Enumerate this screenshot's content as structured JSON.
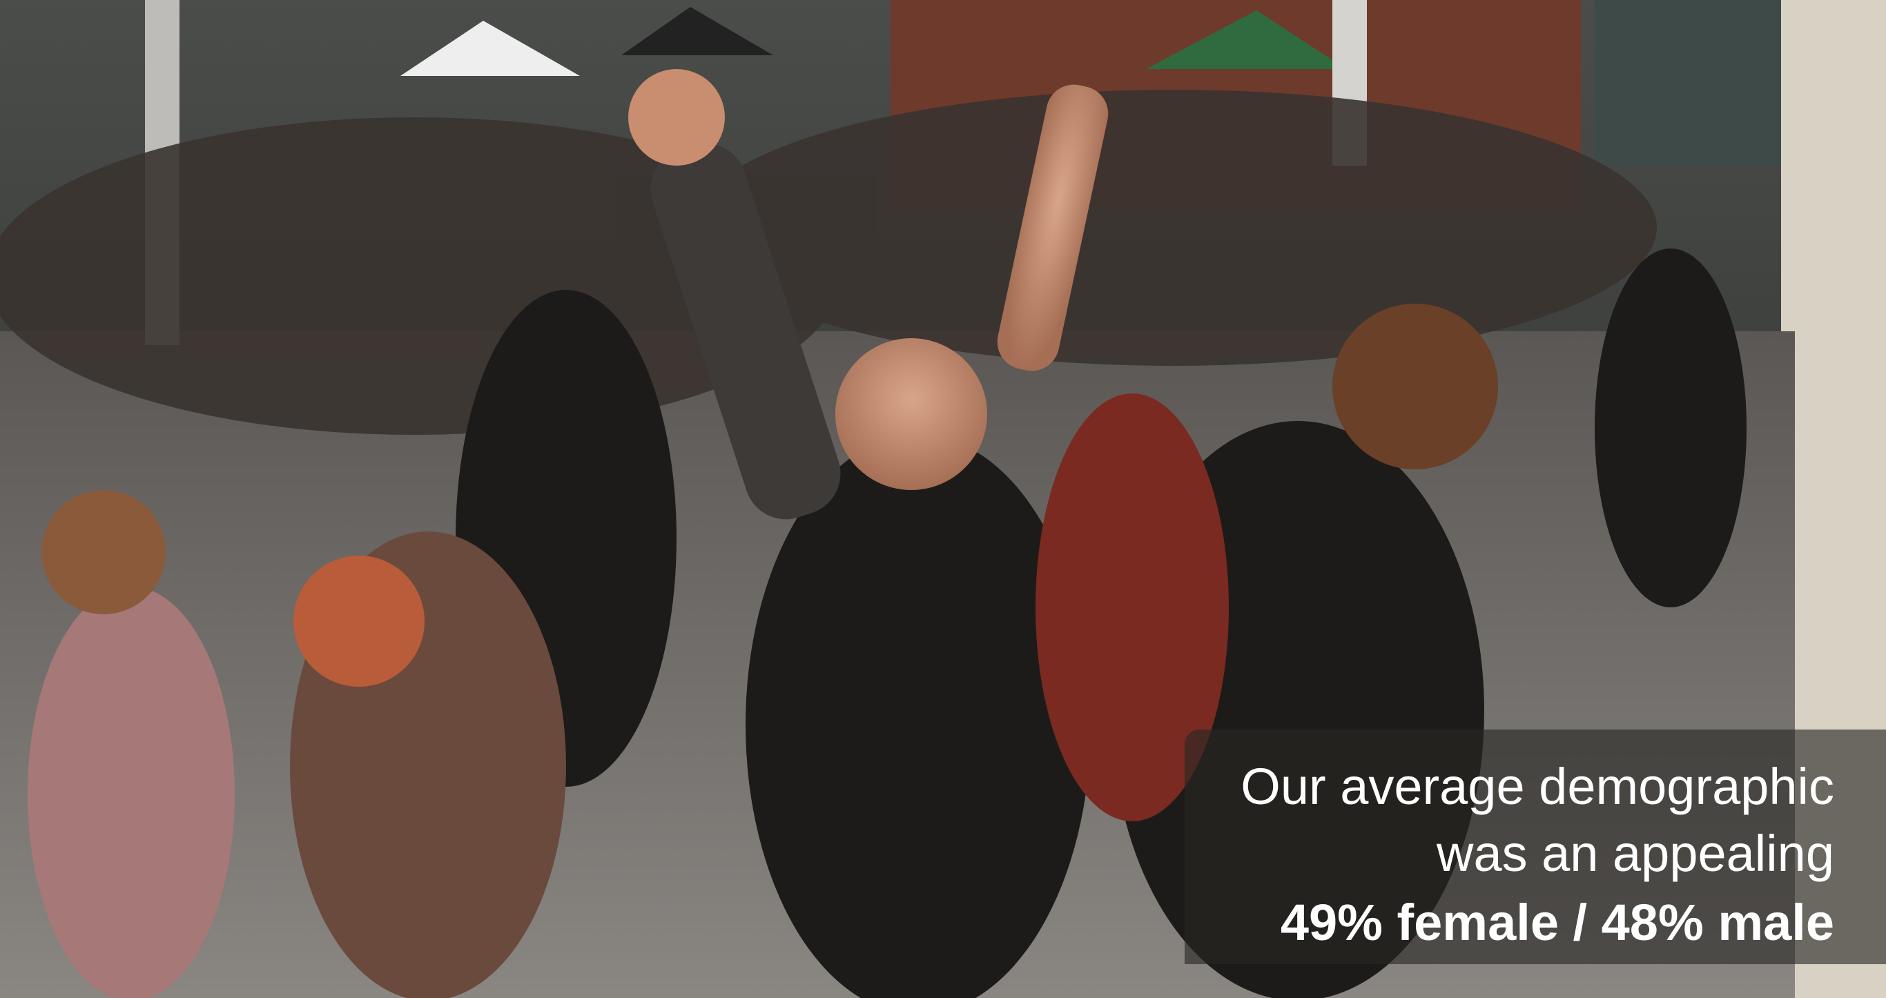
{
  "caption": {
    "lines": [
      "Our average demographic",
      "was an appealing"
    ],
    "highlight": "49% female / 48% male"
  }
}
